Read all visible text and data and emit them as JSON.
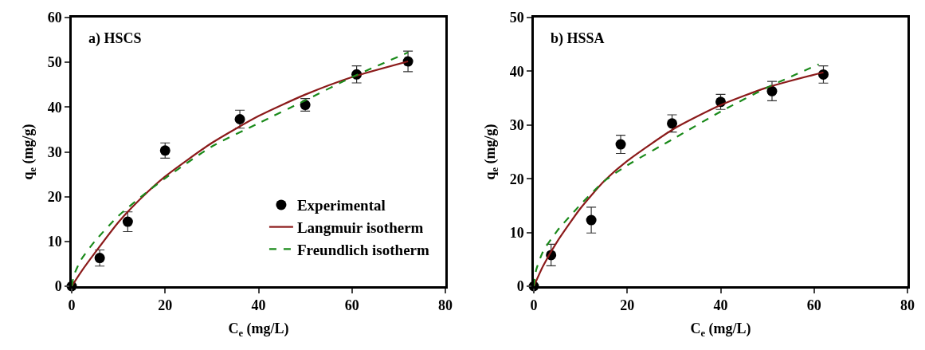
{
  "chart_data": [
    {
      "type": "scatter",
      "title": "a) HSCS",
      "xlabel": "C$_{e}$ (mg/L)",
      "ylabel": "q$_{e}$ (mg/g)",
      "xlim": [
        0,
        80
      ],
      "xticks": [
        0,
        20,
        40,
        60,
        80
      ],
      "ylim": [
        0,
        60
      ],
      "yticks": [
        0,
        10,
        20,
        30,
        40,
        50,
        60
      ],
      "grid": false,
      "legend": "bottom right",
      "series": [
        {
          "name": "Experimental",
          "marker": "circle",
          "color": "#000000",
          "x": [
            0,
            6,
            12,
            20,
            36,
            50,
            61,
            72
          ],
          "values": [
            0,
            6.3,
            14.4,
            30.3,
            37.3,
            40.5,
            47.3,
            50.2
          ],
          "errors": [
            null,
            1.8,
            2.2,
            1.7,
            2,
            1.4,
            1.9,
            2.3
          ]
        },
        {
          "name": "Langmuir isotherm",
          "type": "line",
          "marker": "none",
          "line_style": "solid",
          "color": "#8b1a1a",
          "x": [
            0,
            2,
            5,
            10,
            15,
            20,
            30,
            40,
            50,
            60,
            72
          ],
          "values": [
            0,
            3.2,
            7.5,
            14.3,
            19.8,
            24.5,
            32,
            38,
            42.8,
            46.7,
            50.2
          ]
        },
        {
          "name": "Freundlich isotherm",
          "type": "line",
          "marker": "none",
          "line_style": "dashed",
          "color": "#1a8a1a",
          "x": [
            0,
            0.5,
            2,
            5,
            10,
            15,
            20,
            30,
            40,
            50,
            60,
            72
          ],
          "values": [
            0,
            2.5,
            5.9,
            10.1,
            15.7,
            20.1,
            24.1,
            31.2,
            36.4,
            41.5,
            46.7,
            52.2
          ]
        }
      ]
    },
    {
      "type": "scatter",
      "title": "b) HSSA",
      "xlabel": "C$_{e}$ (mg/L)",
      "ylabel": "q$_{e}$ (mg/g)",
      "xlim": [
        0,
        80
      ],
      "xticks": [
        0,
        20,
        40,
        60,
        80
      ],
      "ylim": [
        0,
        50
      ],
      "yticks": [
        0,
        10,
        20,
        30,
        40,
        50
      ],
      "grid": false,
      "series": [
        {
          "marker": "circle",
          "color": "#000000",
          "x": [
            0,
            3.7,
            12.3,
            18.6,
            29.6,
            40,
            51,
            62
          ],
          "values": [
            0,
            5.8,
            12.3,
            26.4,
            30.3,
            34.3,
            36.3,
            39.4
          ],
          "errors": [
            null,
            2,
            2.4,
            1.7,
            1.6,
            1.4,
            1.8,
            1.6
          ]
        },
        {
          "type": "line",
          "marker": "none",
          "line_style": "solid",
          "color": "#8b1a1a",
          "x": [
            0,
            2,
            5,
            10,
            15,
            20,
            30,
            40,
            50,
            62
          ],
          "values": [
            0,
            3.8,
            8.3,
            14.5,
            19.5,
            23.3,
            29.3,
            33.7,
            37,
            39.8
          ]
        },
        {
          "type": "line",
          "marker": "none",
          "line_style": "dashed",
          "color": "#1a8a1a",
          "x": [
            0,
            0.5,
            2,
            5,
            10,
            15,
            20,
            30,
            40,
            50,
            61
          ],
          "values": [
            0,
            3,
            6.5,
            10.3,
            15.2,
            19.5,
            22.5,
            27.5,
            32.5,
            37,
            41.3
          ]
        }
      ]
    }
  ]
}
